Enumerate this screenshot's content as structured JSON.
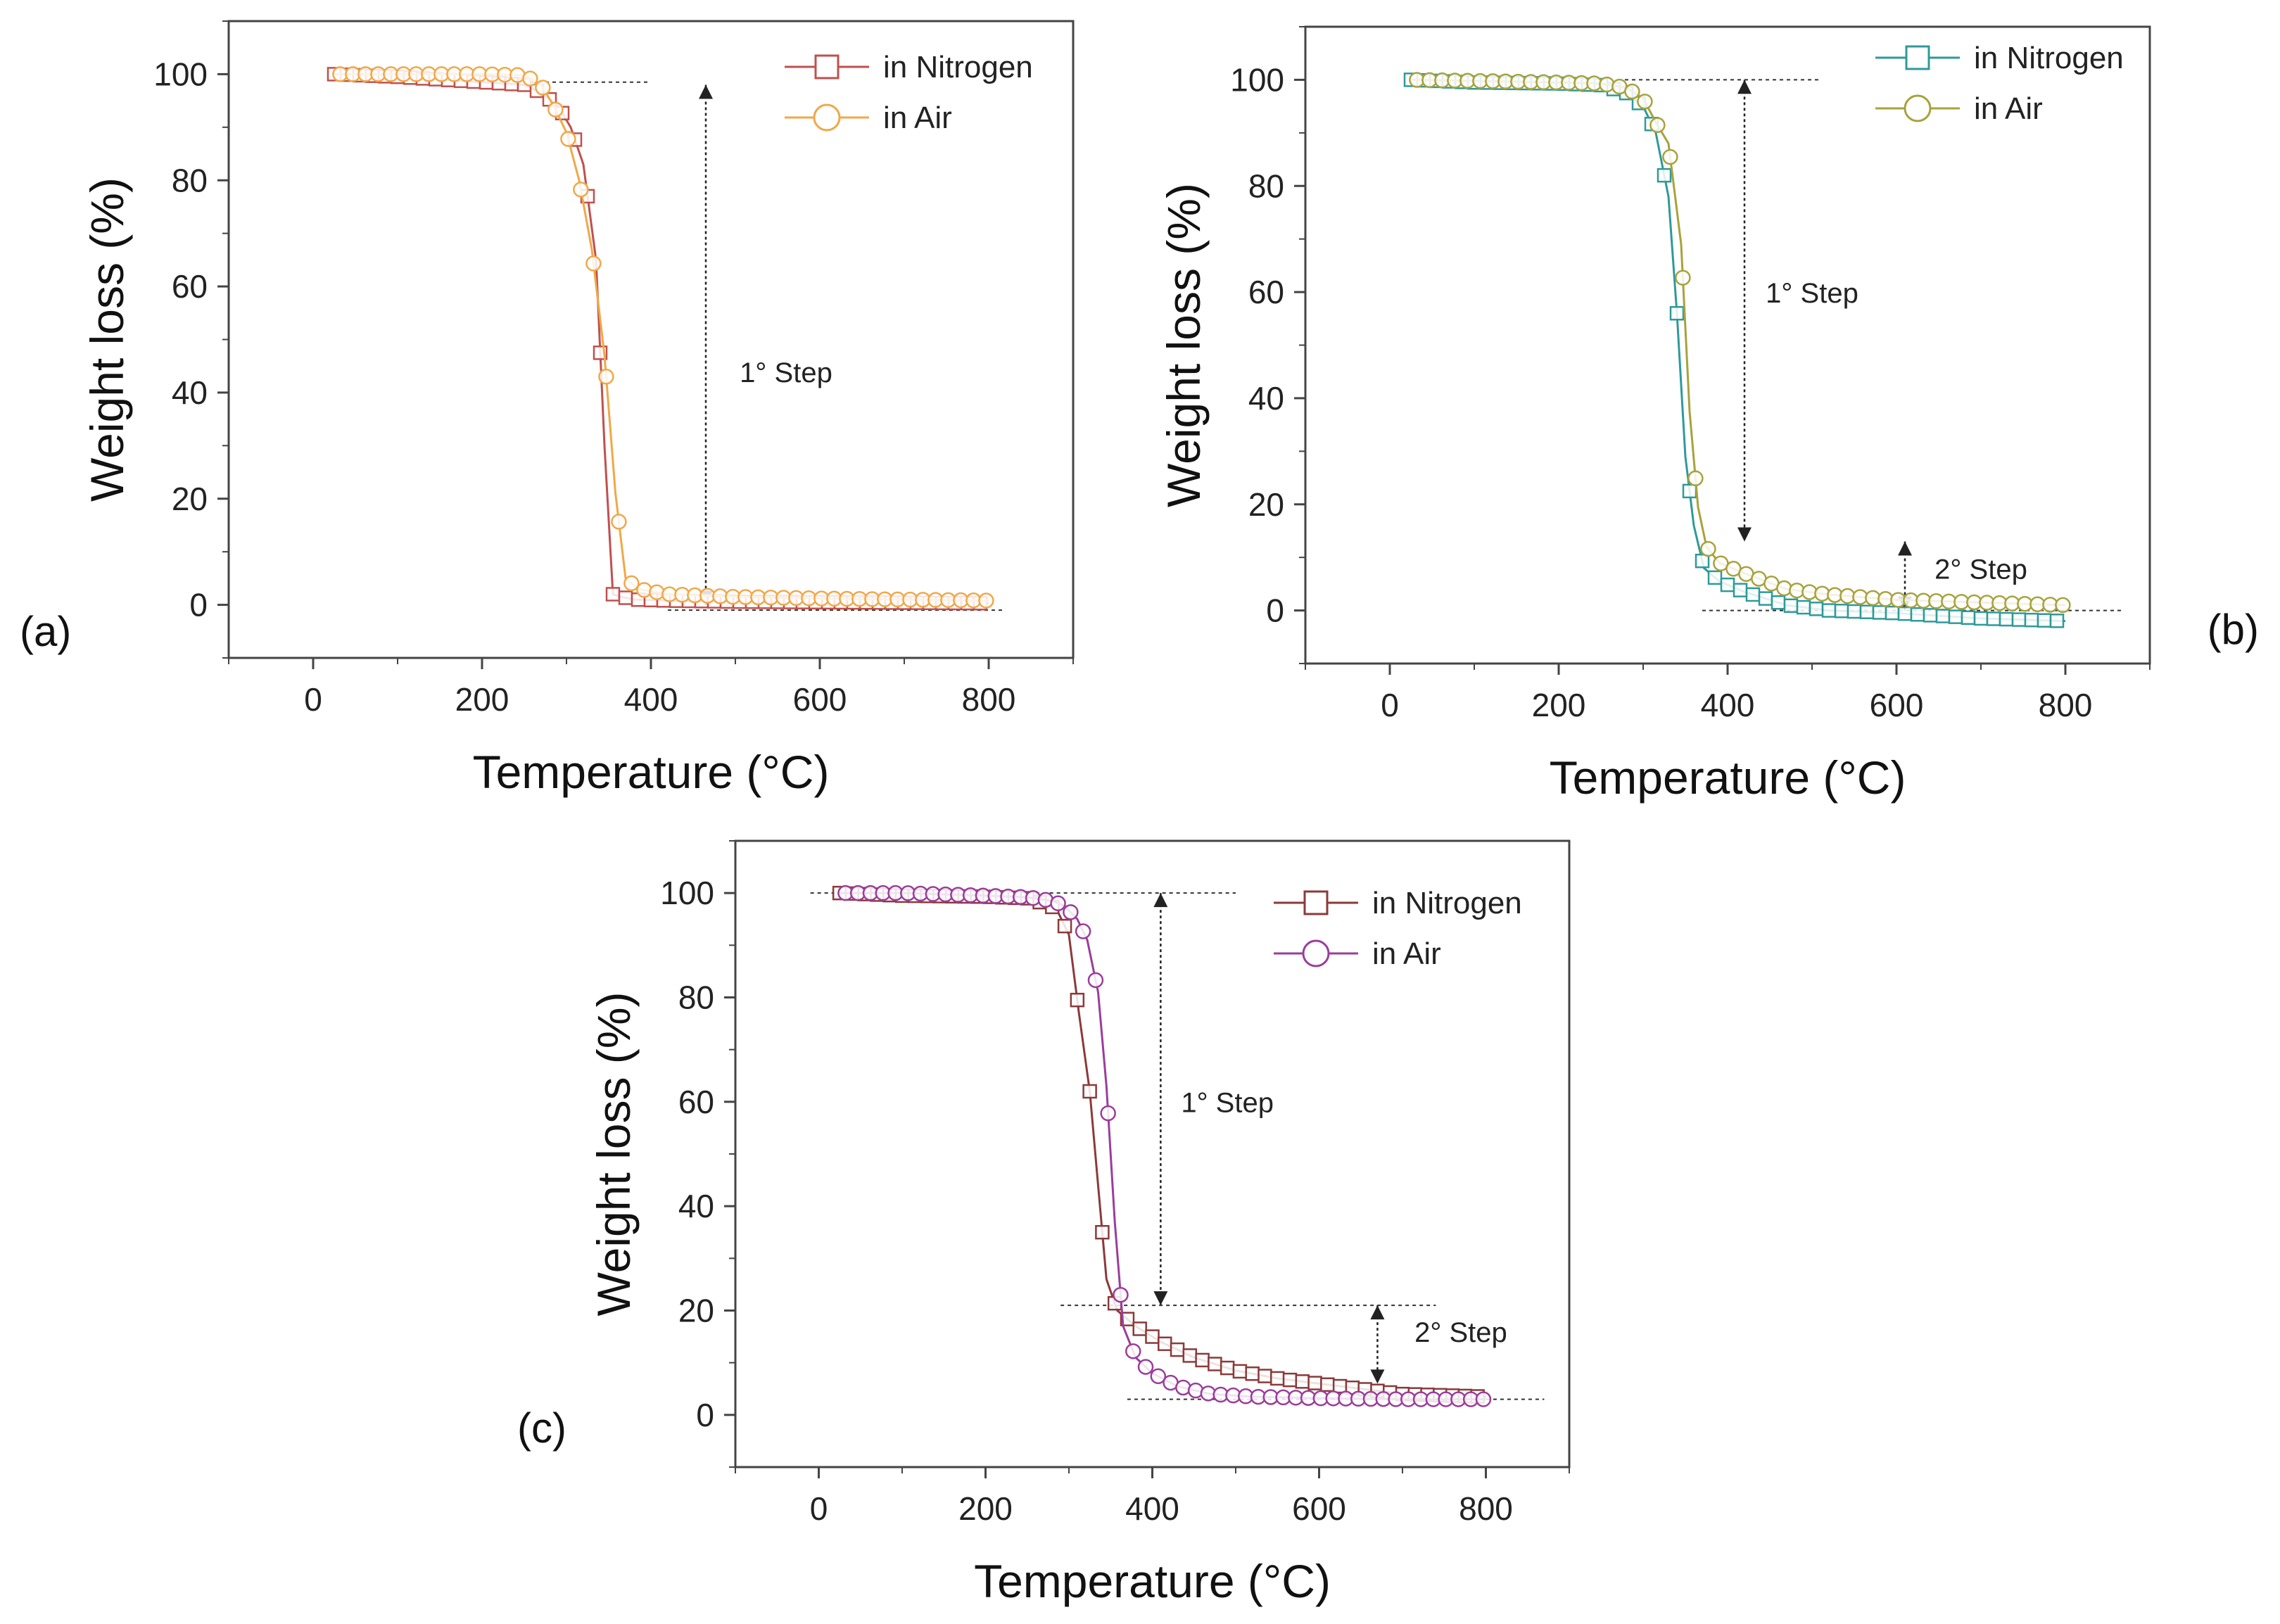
{
  "chart_data": [
    {
      "id": "a",
      "type": "line",
      "panel_label": "(a)",
      "xlabel": "Temperature (°C)",
      "ylabel": "Weight loss (%)",
      "xlim": [
        -100,
        900
      ],
      "ylim": [
        -10,
        110
      ],
      "xticks": [
        0,
        200,
        400,
        600,
        800
      ],
      "yticks": [
        0,
        20,
        40,
        60,
        80,
        100
      ],
      "legend_position": "top-right",
      "series": [
        {
          "name": "in Nitrogen",
          "color": "#c0504d",
          "marker": "square",
          "x": [
            25,
            100,
            200,
            250,
            270,
            290,
            305,
            320,
            335,
            345,
            355,
            365,
            380,
            420,
            500,
            600,
            700,
            800
          ],
          "y": [
            100,
            99.5,
            98.5,
            98,
            96.5,
            94,
            90,
            83,
            65,
            30,
            2,
            1.5,
            1,
            0.8,
            0.6,
            0.5,
            0.4,
            0.3
          ]
        },
        {
          "name": "in Air",
          "color": "#f0a848",
          "marker": "circle",
          "x": [
            25,
            100,
            200,
            250,
            270,
            285,
            300,
            315,
            330,
            345,
            358,
            370,
            385,
            420,
            500,
            600,
            700,
            800
          ],
          "y": [
            100,
            100,
            100,
            99.8,
            98,
            94,
            89,
            80,
            67,
            47,
            21,
            5,
            3,
            2,
            1.5,
            1.2,
            1,
            0.8
          ]
        }
      ],
      "annotations": [
        {
          "text": "1° Step",
          "x": 560,
          "y": 42
        },
        {
          "text": "",
          "type": "arrow",
          "x": 465,
          "y_from": 98,
          "y_to": 0
        },
        {
          "text": "",
          "type": "guide",
          "x_from": 250,
          "x_to": 400,
          "y": 98.5
        },
        {
          "text": "",
          "type": "guide",
          "x_from": 420,
          "x_to": 820,
          "y": -1
        }
      ]
    },
    {
      "id": "b",
      "type": "line",
      "panel_label": "(b)",
      "xlabel": "Temperature (°C)",
      "ylabel": "Weight loss (%)",
      "xlim": [
        -100,
        900
      ],
      "ylim": [
        -10,
        110
      ],
      "xticks": [
        0,
        200,
        400,
        600,
        800
      ],
      "yticks": [
        0,
        20,
        40,
        60,
        80,
        100
      ],
      "legend_position": "top-right",
      "series": [
        {
          "name": "in Nitrogen",
          "color": "#2e9a9a",
          "marker": "square",
          "x": [
            25,
            100,
            200,
            250,
            280,
            300,
            315,
            330,
            340,
            350,
            360,
            372,
            390,
            420,
            470,
            520,
            600,
            700,
            800
          ],
          "y": [
            100,
            99.5,
            99.3,
            99,
            97.5,
            95,
            90,
            78,
            56,
            29,
            16,
            8,
            5.5,
            3.5,
            1,
            0,
            -0.5,
            -1.5,
            -2
          ]
        },
        {
          "name": "in Air",
          "color": "#a8a23c",
          "marker": "circle",
          "x": [
            25,
            100,
            200,
            250,
            280,
            300,
            315,
            330,
            345,
            355,
            365,
            375,
            390,
            420,
            470,
            520,
            600,
            700,
            800
          ],
          "y": [
            100,
            99.8,
            99.5,
            99.3,
            98.5,
            96.5,
            92,
            88,
            69,
            37.5,
            19.5,
            12,
            9,
            7,
            4,
            3,
            2,
            1.5,
            1
          ]
        }
      ],
      "annotations": [
        {
          "text": "1° Step",
          "x": 500,
          "y": 58
        },
        {
          "text": "2° Step",
          "x": 700,
          "y": 6
        },
        {
          "text": "",
          "type": "arrow",
          "x": 420,
          "y_from": 100,
          "y_to": 13
        },
        {
          "text": "",
          "type": "arrow",
          "x": 610,
          "y_from": 13,
          "y_to": 0
        },
        {
          "text": "",
          "type": "guide",
          "x_from": 270,
          "x_to": 510,
          "y": 100
        },
        {
          "text": "",
          "type": "guide",
          "x_from": 370,
          "x_to": 870,
          "y": 0
        }
      ]
    },
    {
      "id": "c",
      "type": "line",
      "panel_label": "(c)",
      "xlabel": "Temperature (°C)",
      "ylabel": "Weight loss (%)",
      "xlim": [
        -100,
        900
      ],
      "ylim": [
        -10,
        110
      ],
      "xticks": [
        0,
        200,
        400,
        600,
        800
      ],
      "yticks": [
        0,
        20,
        40,
        60,
        80,
        100
      ],
      "legend_position": "top-right",
      "series": [
        {
          "name": "in Nitrogen",
          "color": "#8b3a3a",
          "marker": "square",
          "x": [
            25,
            100,
            200,
            250,
            270,
            285,
            300,
            312,
            325,
            335,
            345,
            358,
            380,
            410,
            450,
            500,
            550,
            600,
            650,
            700,
            800
          ],
          "y": [
            100,
            99.5,
            99.3,
            99,
            98,
            97,
            92,
            77,
            62,
            44,
            26,
            20,
            17,
            14,
            11,
            8.5,
            7,
            6,
            5,
            4,
            3.5
          ]
        },
        {
          "name": "in Air",
          "color": "#9b3d9b",
          "marker": "circle",
          "x": [
            25,
            100,
            200,
            250,
            280,
            295,
            310,
            322,
            335,
            345,
            355,
            365,
            380,
            400,
            430,
            470,
            520,
            600,
            700,
            800
          ],
          "y": [
            100,
            100,
            99.5,
            99.2,
            98.5,
            97.5,
            95,
            91,
            81,
            63,
            37,
            17,
            11,
            8,
            5.5,
            4,
            3.5,
            3.2,
            3,
            3
          ]
        }
      ],
      "annotations": [
        {
          "text": "1° Step",
          "x": 490,
          "y": 58
        },
        {
          "text": "2° Step",
          "x": 770,
          "y": 14
        },
        {
          "text": "",
          "type": "arrow",
          "x": 410,
          "y_from": 100,
          "y_to": 21
        },
        {
          "text": "",
          "type": "arrow",
          "x": 670,
          "y_from": 21,
          "y_to": 6
        },
        {
          "text": "",
          "type": "guide",
          "x_from": -10,
          "x_to": 500,
          "y": 100
        },
        {
          "text": "",
          "type": "guide",
          "x_from": 290,
          "x_to": 740,
          "y": 21
        },
        {
          "text": "",
          "type": "guide",
          "x_from": 370,
          "x_to": 870,
          "y": 3
        }
      ]
    }
  ]
}
